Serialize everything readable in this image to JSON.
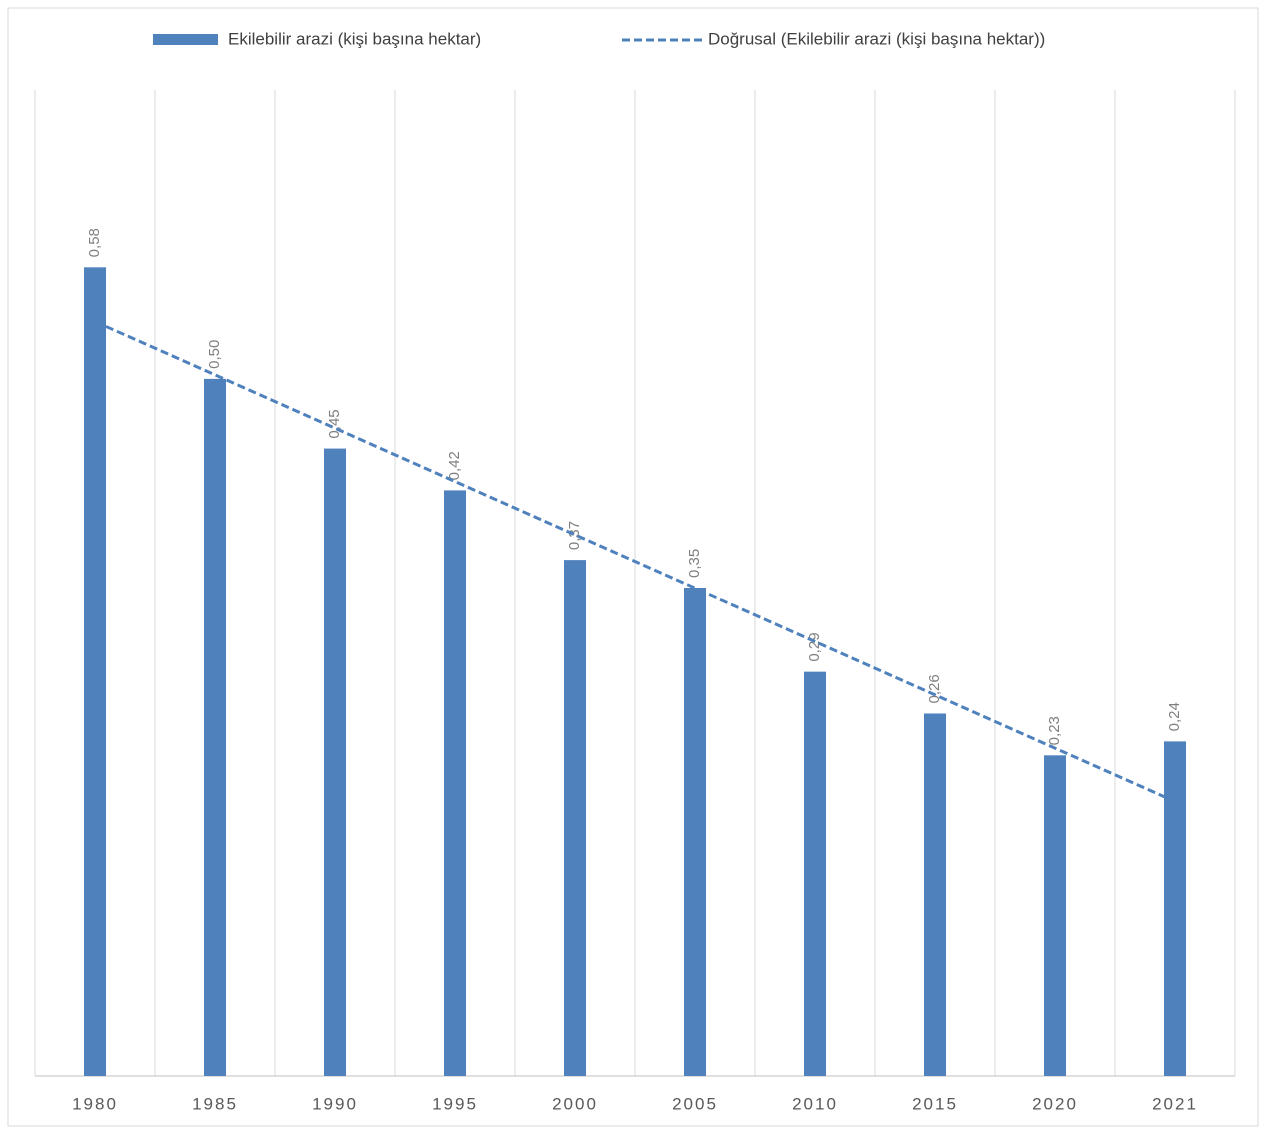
{
  "chart_data": {
    "type": "bar",
    "categories": [
      "1980",
      "1985",
      "1990",
      "1995",
      "2000",
      "2005",
      "2010",
      "2015",
      "2020",
      "2021"
    ],
    "series": [
      {
        "name": "Ekilebilir arazi (kişi başına hektar)",
        "color": "#4f81bd",
        "values": [
          0.58,
          0.5,
          0.45,
          0.42,
          0.37,
          0.35,
          0.29,
          0.26,
          0.23,
          0.24
        ],
        "value_labels": [
          "0,58",
          "0,50",
          "0,45",
          "0,42",
          "0,37",
          "0,35",
          "0,29",
          "0,26",
          "0,23",
          "0,24"
        ]
      }
    ],
    "trendline": {
      "name": "Doğrusal (Ekilebilir arazi (kişi başına hektar))",
      "kind": "linear",
      "color": "#4f81bd"
    },
    "ylim": [
      0,
      0.7
    ],
    "grid": true,
    "legend": "top"
  }
}
